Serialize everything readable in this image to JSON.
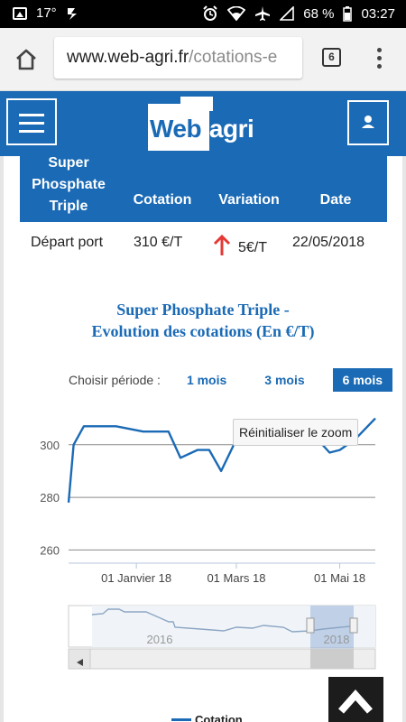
{
  "status_bar": {
    "temperature": "17°",
    "battery": "68 %",
    "time": "03:27"
  },
  "browser": {
    "url_host": "www.web-agri.fr",
    "url_path": "/cotations-e",
    "tab_count": "6"
  },
  "site": {
    "logo_part1": "Web",
    "logo_part2": "-agri"
  },
  "table": {
    "headers": {
      "product": "Super Phosphate Triple",
      "cotation": "Cotation",
      "variation": "Variation",
      "date": "Date"
    },
    "row": {
      "label": "Départ port",
      "cotation": "310 €/T",
      "variation": "5€/T",
      "date": "22/05/2018"
    }
  },
  "chart_title": {
    "line1": "Super Phosphate Triple -",
    "line2": "Evolution des cotations (En €/T)"
  },
  "period": {
    "label": "Choisir période :",
    "options": [
      "1 mois",
      "3 mois",
      "6 mois"
    ],
    "active": "6 mois"
  },
  "zoom_reset_label": "Réinitialiser le zoom",
  "legend_label": "Cotation",
  "colors": {
    "brand_blue": "#1a6ab5",
    "variation_up": "#e53935"
  },
  "chart_data": {
    "type": "line",
    "title": "Super Phosphate Triple - Evolution des cotations (En €/T)",
    "x_tick_labels": [
      "01 Janvier 18",
      "01 Mars 18",
      "01 Mai 18"
    ],
    "y_tick_labels": [
      "260",
      "280",
      "300"
    ],
    "ylim": [
      255,
      315
    ],
    "grid": true,
    "series": [
      {
        "name": "Cotation",
        "x": [
          "2017-11-22",
          "2017-11-25",
          "2017-12-01",
          "2017-12-20",
          "2018-01-05",
          "2018-01-20",
          "2018-01-27",
          "2018-02-06",
          "2018-02-13",
          "2018-02-20",
          "2018-03-01",
          "2018-03-20",
          "2018-04-01",
          "2018-04-18",
          "2018-04-25",
          "2018-05-01",
          "2018-05-10",
          "2018-05-22"
        ],
        "values": [
          278,
          300,
          307,
          307,
          305,
          305,
          295,
          298,
          298,
          290,
          302,
          302,
          302,
          302,
          297,
          298,
          302,
          310
        ]
      }
    ],
    "navigator_labels": [
      "2016",
      "2018"
    ]
  }
}
